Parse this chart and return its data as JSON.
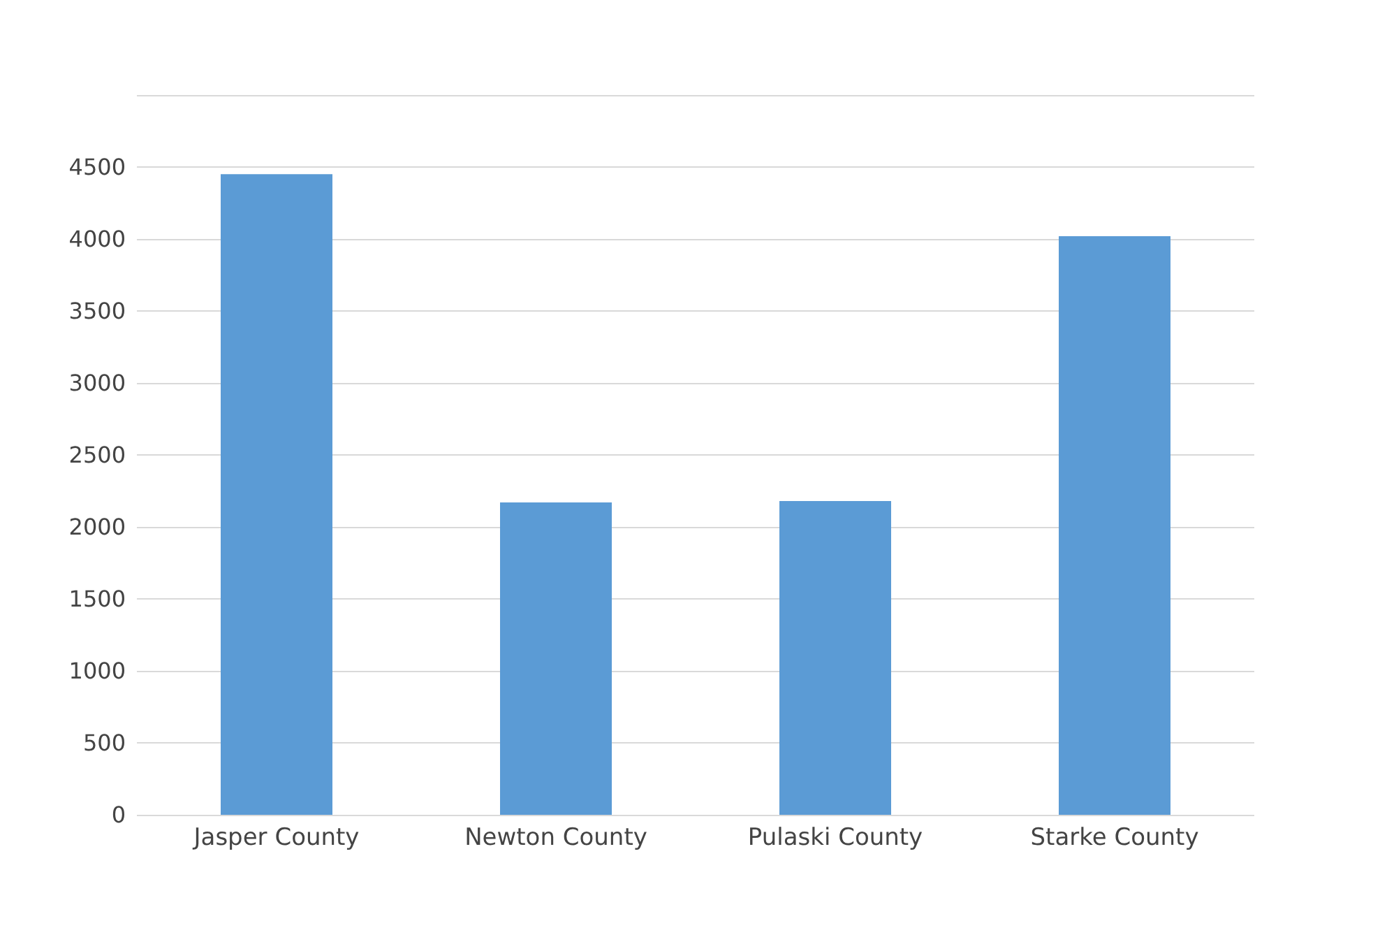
{
  "chart_data": {
    "type": "bar",
    "categories": [
      "Jasper County",
      "Newton County",
      "Pulaski County",
      "Starke County"
    ],
    "values": [
      4450,
      2170,
      2180,
      4020
    ],
    "color": "#5b9bd5",
    "ylim": [
      0,
      5000
    ],
    "yticks": [
      0,
      500,
      1000,
      1500,
      2000,
      2500,
      3000,
      3500,
      4000,
      4500,
      {
        "value": 5000,
        "label": null
      }
    ],
    "grid": true
  }
}
